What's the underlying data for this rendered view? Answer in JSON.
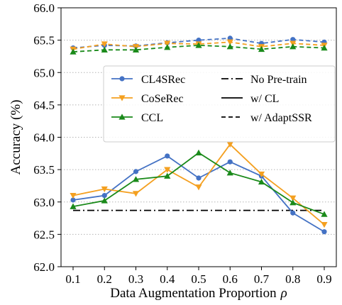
{
  "chart_data": {
    "type": "line",
    "xlabel": "Data Augmentation Proportion",
    "xlabel_symbol": "ρ",
    "ylabel": "Accuracy (%)",
    "x": [
      0.1,
      0.2,
      0.3,
      0.4,
      0.5,
      0.6,
      0.7,
      0.8,
      0.9
    ],
    "x_tick_labels": [
      "0.1",
      "0.2",
      "0.3",
      "0.4",
      "0.5",
      "0.6",
      "0.7",
      "0.8",
      "0.9"
    ],
    "ylim": [
      62.0,
      66.0
    ],
    "y_ticks": [
      62.0,
      62.5,
      63.0,
      63.5,
      64.0,
      64.5,
      65.0,
      65.5,
      66.0
    ],
    "y_tick_labels": [
      "62.0",
      "62.5",
      "63.0",
      "63.5",
      "64.0",
      "64.5",
      "65.0",
      "65.5",
      "66.0"
    ],
    "grid": "horizontal dotted",
    "legend_position": "center",
    "series": [
      {
        "name": "CL4SRec",
        "method": "CL4SRec",
        "setting": "w/ CL",
        "color": "#4472c4",
        "marker": "circle",
        "linestyle": "solid",
        "values": [
          63.03,
          63.1,
          63.47,
          63.71,
          63.37,
          63.62,
          63.4,
          62.83,
          62.54
        ]
      },
      {
        "name": "CoSeRec",
        "method": "CoSeRec",
        "setting": "w/ CL",
        "color": "#f4a020",
        "marker": "triangle-down",
        "linestyle": "solid",
        "values": [
          63.1,
          63.2,
          63.13,
          63.5,
          63.23,
          63.89,
          63.43,
          63.06,
          62.65
        ]
      },
      {
        "name": "CCL",
        "method": "CCL",
        "setting": "w/ CL",
        "color": "#1a8a1a",
        "marker": "triangle-up",
        "linestyle": "solid",
        "values": [
          62.93,
          63.02,
          63.35,
          63.4,
          63.76,
          63.45,
          63.31,
          62.99,
          62.81
        ]
      },
      {
        "name": "CL4SRec",
        "method": "CL4SRec",
        "setting": "w/ AdaptSSR",
        "color": "#4472c4",
        "marker": "circle",
        "linestyle": "dashed",
        "values": [
          65.38,
          65.42,
          65.41,
          65.46,
          65.5,
          65.53,
          65.45,
          65.51,
          65.47
        ]
      },
      {
        "name": "CoSeRec",
        "method": "CoSeRec",
        "setting": "w/ AdaptSSR",
        "color": "#f4a020",
        "marker": "triangle-down",
        "linestyle": "dashed",
        "values": [
          65.36,
          65.44,
          65.4,
          65.45,
          65.44,
          65.47,
          65.4,
          65.45,
          65.42
        ]
      },
      {
        "name": "CCL",
        "method": "CCL",
        "setting": "w/ AdaptSSR",
        "color": "#1a8a1a",
        "marker": "triangle-up",
        "linestyle": "dashed",
        "values": [
          65.32,
          65.35,
          65.35,
          65.39,
          65.42,
          65.4,
          65.36,
          65.4,
          65.38
        ]
      }
    ],
    "reference_lines": [
      {
        "name": "No Pre-train",
        "value": 62.87,
        "color": "#000000",
        "linestyle": "dashdot"
      }
    ],
    "legend": {
      "methods": [
        {
          "label": "CL4SRec",
          "color": "#4472c4",
          "marker": "circle"
        },
        {
          "label": "CoSeRec",
          "color": "#f4a020",
          "marker": "triangle-down"
        },
        {
          "label": "CCL",
          "color": "#1a8a1a",
          "marker": "triangle-up"
        }
      ],
      "styles": [
        {
          "label": "No Pre-train",
          "linestyle": "dashdot"
        },
        {
          "label": "w/ CL",
          "linestyle": "solid"
        },
        {
          "label": "w/ AdaptSSR",
          "linestyle": "dashed"
        }
      ]
    }
  }
}
